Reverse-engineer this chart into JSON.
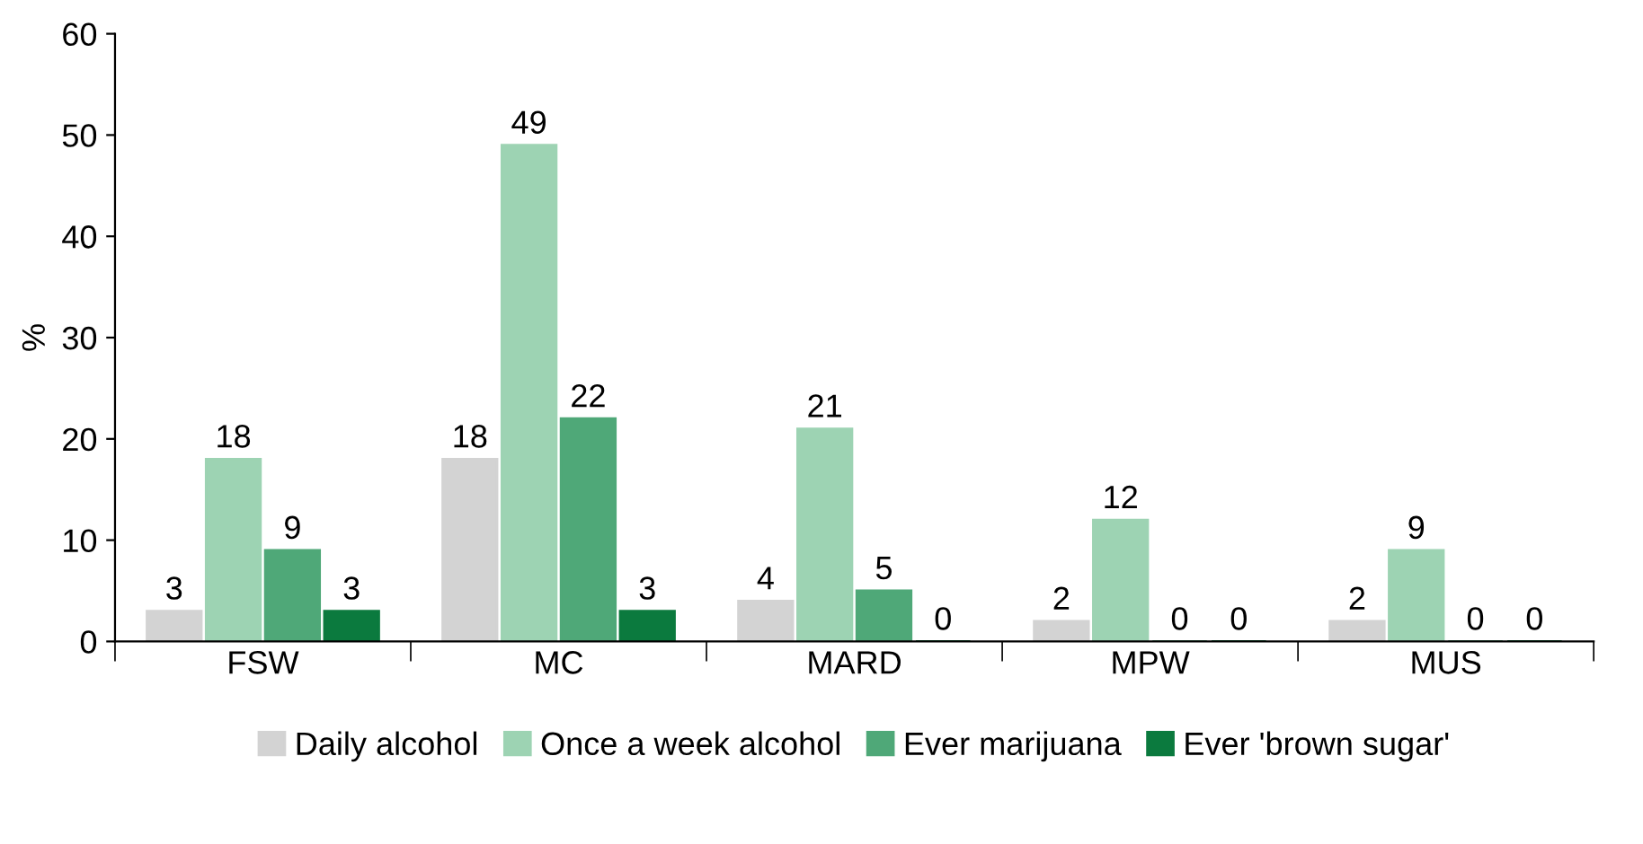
{
  "chart_data": {
    "type": "bar",
    "ylabel": "%",
    "categories": [
      "FSW",
      "MC",
      "MARD",
      "MPW",
      "MUS"
    ],
    "series": [
      {
        "name": "Daily alcohol",
        "color": "#d3d3d3",
        "values": [
          3,
          18,
          4,
          2,
          2
        ]
      },
      {
        "name": "Once a week alcohol",
        "color": "#9dd3b3",
        "values": [
          18,
          49,
          21,
          12,
          9
        ]
      },
      {
        "name": "Ever marijuana",
        "color": "#4fa878",
        "values": [
          9,
          22,
          5,
          0,
          0
        ]
      },
      {
        "name": "Ever 'brown sugar'",
        "color": "#0b7a3e",
        "values": [
          3,
          3,
          0,
          0,
          0
        ]
      }
    ],
    "ylim": [
      0,
      60
    ],
    "yticks": [
      0,
      10,
      20,
      30,
      40,
      50,
      60
    ],
    "data_labels": true,
    "grid": false,
    "legend": "bottom"
  }
}
